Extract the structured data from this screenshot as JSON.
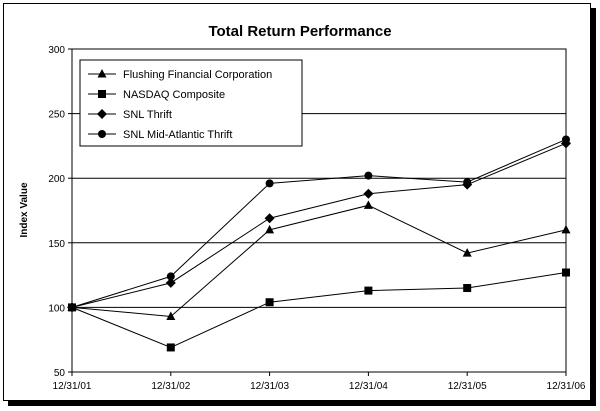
{
  "chart_data": {
    "type": "line",
    "title": "Total Return Performance",
    "xlabel": "",
    "ylabel": "Index Value",
    "categories": [
      "12/31/01",
      "12/31/02",
      "12/31/03",
      "12/31/04",
      "12/31/05",
      "12/31/06"
    ],
    "ylim": [
      50,
      300
    ],
    "yticks": [
      50,
      100,
      150,
      200,
      250,
      300
    ],
    "grid": true,
    "legend_position": "top-left",
    "series": [
      {
        "name": "Flushing Financial Corporation",
        "marker": "triangle",
        "values": [
          100,
          93,
          160,
          179,
          142,
          160
        ]
      },
      {
        "name": "NASDAQ Composite",
        "marker": "square",
        "values": [
          100,
          69,
          104,
          113,
          115,
          127
        ]
      },
      {
        "name": "SNL Thrift",
        "marker": "diamond",
        "values": [
          100,
          119,
          169,
          188,
          195,
          227
        ]
      },
      {
        "name": "SNL Mid-Atlantic Thrift",
        "marker": "circle",
        "values": [
          100,
          124,
          196,
          202,
          197,
          230
        ]
      }
    ],
    "colors": {
      "line": "#000000",
      "grid": "#000000",
      "background": "#ffffff"
    }
  }
}
